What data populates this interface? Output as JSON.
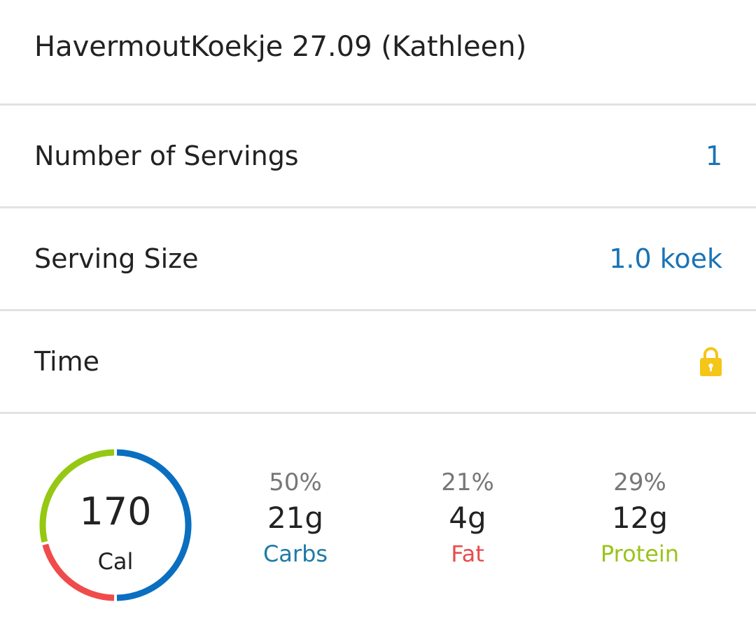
{
  "food": {
    "title": "HavermoutKoekje 27.09 (Kathleen)"
  },
  "rows": {
    "servings": {
      "label": "Number of Servings",
      "value": "1"
    },
    "serving_size": {
      "label": "Serving Size",
      "value": "1.0 koek"
    },
    "time": {
      "label": "Time",
      "icon": "lock-icon"
    }
  },
  "summary": {
    "calories": "170",
    "calories_label": "Cal",
    "macros": [
      {
        "percent": "50%",
        "grams": "21g",
        "name": "Carbs",
        "fraction": 0.5,
        "color": "#1f7aa8"
      },
      {
        "percent": "21%",
        "grams": "4g",
        "name": "Fat",
        "fraction": 0.21,
        "color": "#e84c4c"
      },
      {
        "percent": "29%",
        "grams": "12g",
        "name": "Protein",
        "fraction": 0.29,
        "color": "#9bc31a"
      }
    ]
  },
  "colors": {
    "accent_blue": "#1a73b5",
    "donut_carbs": "#0a6fc0",
    "donut_fat": "#f04b4b",
    "donut_protein": "#95c812",
    "lock": "#f5c518"
  }
}
